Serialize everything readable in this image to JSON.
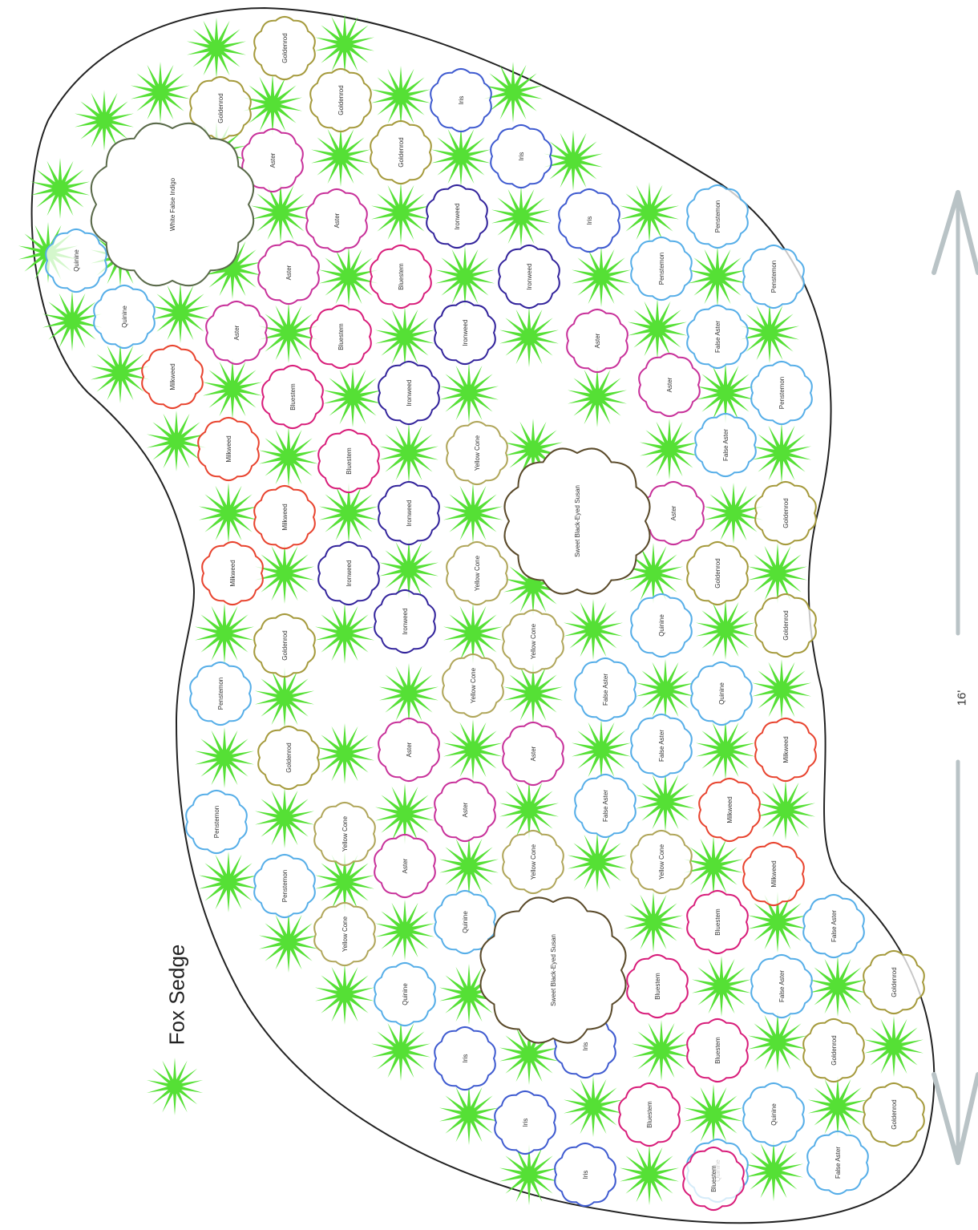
{
  "legend": {
    "label": "Fox Sedge",
    "icon": "sedge-star-icon"
  },
  "dimension": {
    "label": "16'"
  },
  "colors": {
    "sedge": "#55e035",
    "Goldenrod": "#a59a3c",
    "Iris": "#3f5bd0",
    "Aster": "#c8319a",
    "Bluestem": "#d81d7a",
    "Ironweed": "#33249c",
    "Quinine": "#56aee8",
    "Penstemon": "#56aee8",
    "False Aster": "#56aee8",
    "Milkweed": "#e8432e",
    "Yellow Cone": "#b0a65a",
    "Sweet Black-Eyed Susan": "#5a4a2a",
    "White False Indigo": "#5a6a4a",
    "outline": "#222222",
    "arrow": "#b9c3c6"
  },
  "plants": [
    {
      "name": "Goldenrod",
      "label": "Goldenrod"
    },
    {
      "name": "Goldenrod",
      "label": "Goldenrod"
    },
    {
      "name": "Goldenrod",
      "label": "Goldenrod"
    },
    {
      "name": "Goldenrod",
      "label": "Goldenrod"
    },
    {
      "name": "Iris",
      "label": "Iris"
    },
    {
      "name": "Iris",
      "label": "Iris"
    },
    {
      "name": "Iris",
      "label": "Iris"
    },
    {
      "name": "Aster",
      "label": "Aster"
    },
    {
      "name": "Aster",
      "label": "Aster"
    },
    {
      "name": "Aster",
      "label": "Aster"
    },
    {
      "name": "Aster",
      "label": "Aster"
    },
    {
      "name": "Bluestem",
      "label": "Bluestem"
    },
    {
      "name": "Bluestem",
      "label": "Bluestem"
    },
    {
      "name": "Bluestem",
      "label": "Bluestem"
    },
    {
      "name": "Bluestem",
      "label": "Bluestem"
    },
    {
      "name": "Ironweed",
      "label": "Ironweed"
    },
    {
      "name": "Ironweed",
      "label": "Ironweed"
    },
    {
      "name": "Ironweed",
      "label": "Ironweed"
    },
    {
      "name": "Ironweed",
      "label": "Ironweed"
    },
    {
      "name": "Quinine",
      "label": "Quinine"
    },
    {
      "name": "Quinine",
      "label": "Quinine"
    },
    {
      "name": "Milkweed",
      "label": "Milkweed"
    },
    {
      "name": "Milkweed",
      "label": "Milkweed"
    },
    {
      "name": "Milkweed",
      "label": "Milkweed"
    },
    {
      "name": "Milkweed",
      "label": "Milkweed"
    },
    {
      "name": "Aster",
      "label": "Aster"
    },
    {
      "name": "Aster",
      "label": "Aster"
    },
    {
      "name": "Penstemon",
      "label": "Penstemon"
    },
    {
      "name": "Penstemon",
      "label": "Penstemon"
    },
    {
      "name": "Penstemon",
      "label": "Penstemon"
    },
    {
      "name": "False Aster",
      "label": "False Aster"
    },
    {
      "name": "Penstemon",
      "label": "Penstemon"
    },
    {
      "name": "False Aster",
      "label": "False Aster"
    },
    {
      "name": "Goldenrod",
      "label": "Goldenrod"
    },
    {
      "name": "Aster",
      "label": "Aster"
    },
    {
      "name": "Yellow Cone",
      "label": "Yellow Cone"
    },
    {
      "name": "Ironweed",
      "label": "Ironweed"
    },
    {
      "name": "Ironweed",
      "label": "Ironweed"
    },
    {
      "name": "Goldenrod",
      "label": "Goldenrod"
    },
    {
      "name": "Yellow Cone",
      "label": "Yellow Cone"
    },
    {
      "name": "Goldenrod",
      "label": "Goldenrod"
    },
    {
      "name": "Goldenrod",
      "label": "Goldenrod"
    },
    {
      "name": "Quinine",
      "label": "Quinine"
    },
    {
      "name": "Yellow Cone",
      "label": "Yellow Cone"
    },
    {
      "name": "Ironweed",
      "label": "Ironweed"
    },
    {
      "name": "Penstemon",
      "label": "Penstemon"
    },
    {
      "name": "Yellow Cone",
      "label": "Yellow Cone"
    },
    {
      "name": "False Aster",
      "label": "False Aster"
    },
    {
      "name": "Quinine",
      "label": "Quinine"
    },
    {
      "name": "Milkweed",
      "label": "Milkweed"
    },
    {
      "name": "Goldenrod",
      "label": "Goldenrod"
    },
    {
      "name": "Aster",
      "label": "Aster"
    },
    {
      "name": "Aster",
      "label": "Aster"
    },
    {
      "name": "False Aster",
      "label": "False Aster"
    },
    {
      "name": "Penstemon",
      "label": "Penstemon"
    },
    {
      "name": "Yellow Cone",
      "label": "Yellow Cone"
    },
    {
      "name": "Aster",
      "label": "Aster"
    },
    {
      "name": "False Aster",
      "label": "False Aster"
    },
    {
      "name": "Milkweed",
      "label": "Milkweed"
    },
    {
      "name": "Penstemon",
      "label": "Penstemon"
    },
    {
      "name": "Aster",
      "label": "Aster"
    },
    {
      "name": "Yellow Cone",
      "label": "Yellow Cone"
    },
    {
      "name": "Yellow Cone",
      "label": "Yellow Cone"
    },
    {
      "name": "Milkweed",
      "label": "Milkweed"
    },
    {
      "name": "Yellow Cone",
      "label": "Yellow Cone"
    },
    {
      "name": "Quinine",
      "label": "Quinine"
    },
    {
      "name": "Bluestem",
      "label": "Bluestem"
    },
    {
      "name": "False Aster",
      "label": "False Aster"
    },
    {
      "name": "Quinine",
      "label": "Quinine"
    },
    {
      "name": "Bluestem",
      "label": "Bluestem"
    },
    {
      "name": "False Aster",
      "label": "False Aster"
    },
    {
      "name": "Goldenrod",
      "label": "Goldenrod"
    },
    {
      "name": "Iris",
      "label": "Iris"
    },
    {
      "name": "Iris",
      "label": "Iris"
    },
    {
      "name": "Bluestem",
      "label": "Bluestem"
    },
    {
      "name": "Goldenrod",
      "label": "Goldenrod"
    },
    {
      "name": "Iris",
      "label": "Iris"
    },
    {
      "name": "Bluestem",
      "label": "Bluestem"
    },
    {
      "name": "Quinine",
      "label": "Quinine"
    },
    {
      "name": "Goldenrod",
      "label": "Goldenrod"
    },
    {
      "name": "Iris",
      "label": "Iris"
    },
    {
      "name": "Quinine",
      "label": "Quinine"
    },
    {
      "name": "False Aster",
      "label": "False Aster"
    },
    {
      "name": "Bluestem",
      "label": "Bluestem"
    }
  ],
  "big_plants": [
    {
      "name": "White False Indigo",
      "label": "White False Indigo"
    },
    {
      "name": "Sweet Black-Eyed Susan",
      "label": "Sweet Black-Eyed Susan"
    },
    {
      "name": "Sweet Black-Eyed Susan",
      "label": "Sweet Black-Eyed Susan"
    }
  ]
}
